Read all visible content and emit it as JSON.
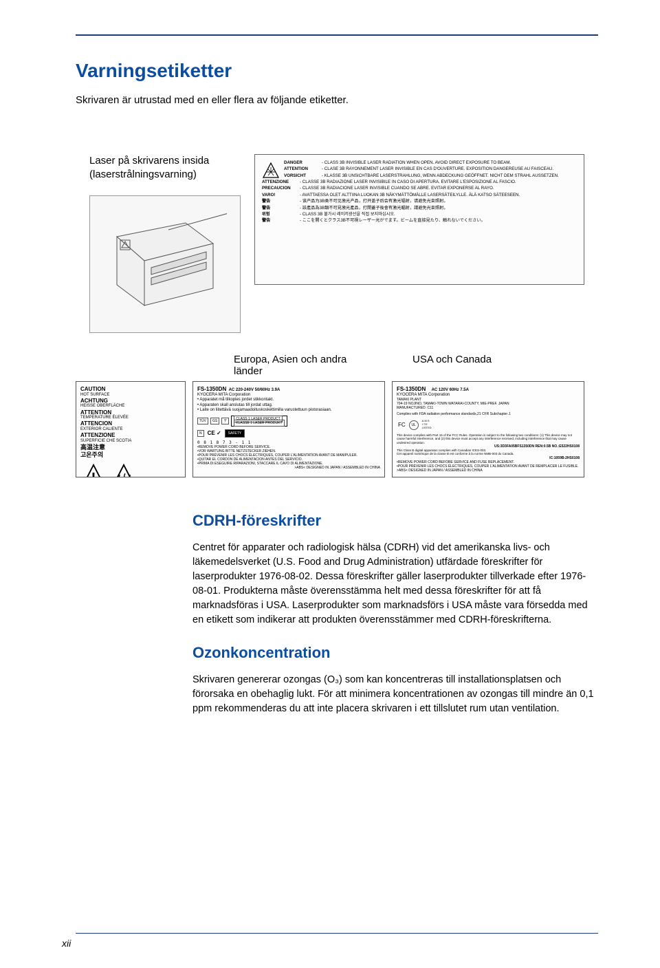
{
  "colors": {
    "heading": "#0b4da2",
    "rule": "#1a3a7a",
    "text": "#000000",
    "box_border": "#666666",
    "bg": "#ffffff"
  },
  "page": {
    "footer_pagenum": "xii"
  },
  "top": {
    "h1": "Varningsetiketter",
    "intro": "Skrivaren är utrustad med en eller flera av följande etiketter.",
    "caption_laser": "Laser på skrivarens insida (laserstrålningsvarning)",
    "caption_eu": "Europa, Asien och andra länder",
    "caption_us": "USA och Canada"
  },
  "warning_label": {
    "rows": [
      {
        "l": "DANGER",
        "r": "- CLASS 3B INVISIBLE LASER RADIATION WHEN OPEN. AVOID DIRECT EXPOSURE TO BEAM."
      },
      {
        "l": "ATTENTION",
        "r": "- CLASE 3B RAYONNEMENT LASER INVISIBLE EN CAS D'OUVERTURE. EXPOSITION DANGEREUSE AU FAISCEAU."
      },
      {
        "l": "VORSICHT",
        "r": "- KLASSE 3B UNSICHTBARE LASERSTRAHLUNG, WENN ABDECKUNG GEÖFFNET. NICHT DEM STRAHL AUSSETZEN."
      },
      {
        "l": "ATTENZIONE",
        "r": "- CLASSE 3B RADIAZIONE LASER INVISIBILE IN CASO DI APERTURA. EVITARE L'ESPOSIZIONE AL FASCIO."
      },
      {
        "l": "PRECAUCION",
        "r": "- CLASSE 3B RADIACIONE LASER INVISIBLE CUANDO SE ABRE. EVITAR EXPONERSE AL RAYO."
      },
      {
        "l": "VARO!",
        "r": "- AVATTAESSA OLET ALTTIINA LUOKAN 3B NÄKYMÄTTÖMÄLLE LASERSÄTEILYLLE. ÄLÄ KATSO SÄTEESEEN."
      },
      {
        "l": "警告",
        "r": "- 该产品为3B类不可见激光产品，打开盖子后会有激光辐射，请避免光束照射。"
      },
      {
        "l": "警告",
        "r": "- 該產品為3B類不可見激光產品，打開蓋子後會有激光輻射，請避免光束照射。"
      },
      {
        "l": "위험",
        "r": "- CLASS 3B 불가시 레이저광선을 직접 보지마십시오."
      },
      {
        "l": "警告",
        "r": "- ここを開くとクラス3B不可視レーザー光がでます。ビームを直接見たり、触れないでください。"
      }
    ]
  },
  "card_a": {
    "rows": [
      {
        "b": "CAUTION",
        "s": "HOT SURFACE"
      },
      {
        "b": "ACHTUNG",
        "s": "HEISSE OBERFLÄCHE"
      },
      {
        "b": "ATTENTION",
        "s": "TEMPERATURE ÉLEVÉE"
      },
      {
        "b": "ATTENCION",
        "s": "EXTERIOR CALIENTE"
      },
      {
        "b": "ATTENZIONE",
        "s": "SUPERFICIE CHE SCOTIA"
      }
    ],
    "cjk1": "高温注意",
    "cjk2": "고온주의"
  },
  "card_b": {
    "title": "FS-1350DN",
    "spec": "AC 220-240V 50/60Hz 3.9A",
    "corp": "KYOCERA MITA Corporation",
    "lines": [
      "• Apparatet må tilkoples jordet stikkontakt.",
      "• Apparaten skall anslutas till jordat uttag.",
      "• Laite on liitettävä suojamaadoituskoskettimilla varustettuun pistorasiaan."
    ],
    "class_lines": [
      "CLASS 1 LASER PRODUCT",
      "KLASSE 1 LASER PRODUKT"
    ],
    "safety": "SAFETY",
    "barcode": "0 8 1 8 7 3 - 1 1",
    "bottom": [
      "•REMOVE POWER CORD BEFORE SERVICE.",
      "•VOR WARTUNG BITTE NETZSTECKER ZIEHEN.",
      "•POUR PRÉVENIR LES CHOCS ÉLECTRIQUES, COUPER L'ALIMENTATION AVANT DE MANIPULER.",
      "•QUITAR EL CORDON DE ALIMENTACION ANTES DEL SERVICIO.",
      "•PRIMA DI ESEGUIRE RIPARAZIONI, STACCARE IL CAVO DI ALIMENTAZIONE."
    ],
    "origin": ">ABS< DESIGNED IN JAPAN / ASSEMBLED IN CHINA"
  },
  "card_c": {
    "title": "FS-1350DN",
    "spec": "AC 120V 60Hz 7.5A",
    "corp": "KYOCERA MITA Corporation",
    "plant": "TAMAKI PLANT\n704-19 NOJINO, TAMAKI-TOWN WATARAI-COUNTY, MIE-PREF. JAPAN\nMANUFACTURED: C11",
    "fda": "Complies with FDA radiation performance standards,21 CFR Subchapter J.",
    "ul": "A.M.S\nI.T.E\nLISTED",
    "fcc": "This device complies with Part 15 of the FCC Rules. Operation is subject to the following two conditions: (1) This device may not cause harmful interference, and (2) this device must accept any interference received, including interference that may cause undesired operation.",
    "fcc_id": "US:3D3FA05BFS1350DN  REN:0.5B  NO.:E522HS0108",
    "canada": "This Class B digital apparatus complies with Canadian ICES-003.\nCet appareil numérique de la classe B est conforme à la norme NMB-003 du Canada.",
    "ic": "IC:1059B-2HS0108",
    "bottom": "•REMOVE POWER CORD BEFORE SERVICE AND FUSE REPLACEMENT.\n•POUR PRÉVENIR LES CHOCS ÉLECTRIQUES, COUPER L'ALIMENTATION AVANT DE REMPLACER LE FUSIBLE.",
    "origin": ">ABS<                                          DESIGNED IN JAPAN / ASSEMBLED IN CHINA"
  },
  "cdrh": {
    "h2": "CDRH-föreskrifter",
    "p": "Centret för apparater och radiologisk hälsa (CDRH) vid det amerikanska livs- och läkemedelsverket (U.S. Food and Drug Administration) utfärdade föreskrifter för laserprodukter 1976-08-02. Dessa föreskrifter gäller laserprodukter tillverkade efter 1976-08-01. Produkterna måste överensstämma helt med dessa föreskrifter för att få marknadsföras i USA. Laserprodukter som marknadsförs i USA måste vara försedda med en etikett som indikerar att produkten överensstämmer med CDRH-föreskrifterna."
  },
  "ozon": {
    "h2": "Ozonkoncentration",
    "p": "Skrivaren genererar ozongas (O₃) som kan koncentreras till installationsplatsen och förorsaka en obehaglig lukt. För att minimera koncentrationen av ozongas till mindre än 0,1 ppm rekommenderas du att inte placera skrivaren i ett tillslutet rum utan ventilation."
  }
}
